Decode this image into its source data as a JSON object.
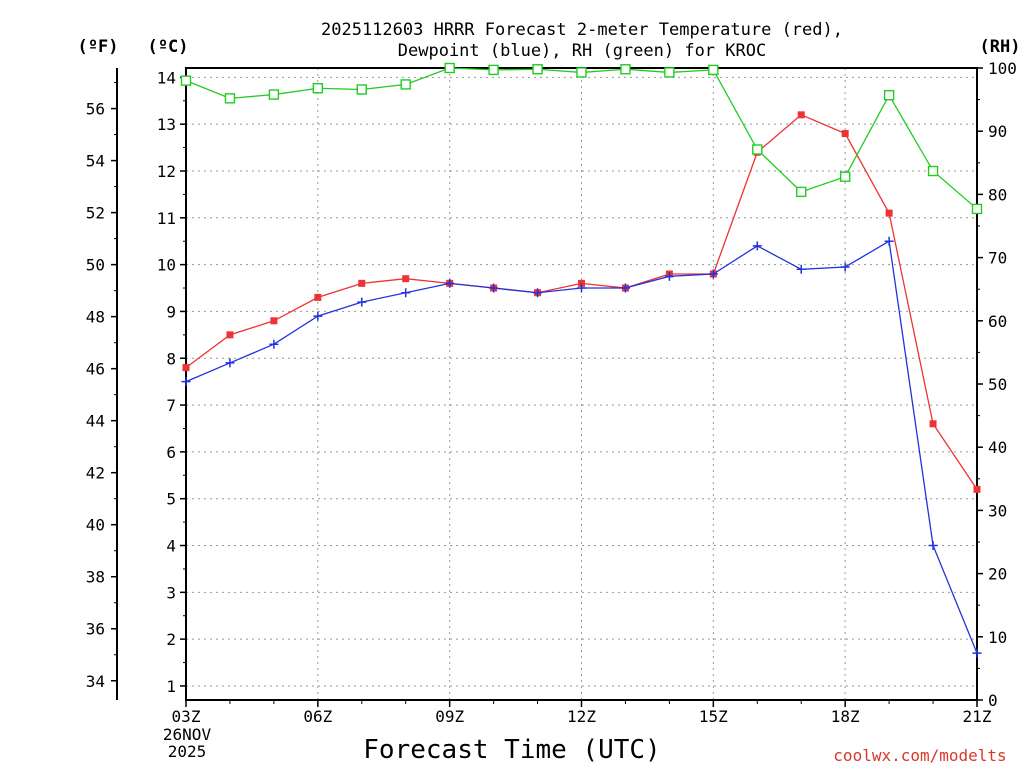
{
  "chart_data": {
    "type": "line",
    "title": [
      "2025112603 HRRR Forecast 2-meter Temperature (red),",
      "Dewpoint (blue), RH (green) for KROC"
    ],
    "xlabel": "Forecast Time (UTC)",
    "x": [
      3,
      4,
      5,
      6,
      7,
      8,
      9,
      10,
      11,
      12,
      13,
      14,
      15,
      16,
      17,
      18,
      19,
      20,
      21
    ],
    "x_ticks": [
      3,
      6,
      9,
      12,
      15,
      18,
      21
    ],
    "x_tick_labels": [
      "03Z",
      "06Z",
      "09Z",
      "12Z",
      "15Z",
      "18Z",
      "21Z"
    ],
    "date_label": [
      "26NOV",
      "2025"
    ],
    "left_axis_c": {
      "label": "(ºC)",
      "ticks": [
        1,
        2,
        3,
        4,
        5,
        6,
        7,
        8,
        9,
        10,
        11,
        12,
        13,
        14
      ],
      "range": [
        0.7,
        14.2
      ]
    },
    "left_axis_f": {
      "label": "(ºF)",
      "ticks": [
        34,
        36,
        38,
        40,
        42,
        44,
        46,
        48,
        50,
        52,
        54,
        56
      ]
    },
    "right_axis": {
      "label": "(RH)",
      "ticks": [
        0,
        10,
        20,
        30,
        40,
        50,
        60,
        70,
        80,
        90,
        100
      ],
      "range": [
        0,
        100
      ]
    },
    "series": [
      {
        "name": "Temperature",
        "axis": "c",
        "color": "#ee3333",
        "marker": "filled-square",
        "values": [
          7.8,
          8.5,
          8.8,
          9.3,
          9.6,
          9.7,
          9.6,
          9.5,
          9.4,
          9.6,
          9.5,
          9.8,
          9.8,
          12.4,
          13.2,
          12.8,
          11.1,
          6.6,
          5.2
        ]
      },
      {
        "name": "Dewpoint",
        "axis": "c",
        "color": "#2233dd",
        "marker": "plus",
        "values": [
          7.5,
          7.9,
          8.3,
          8.9,
          9.2,
          9.4,
          9.6,
          9.5,
          9.4,
          9.5,
          9.5,
          9.75,
          9.8,
          10.4,
          9.9,
          9.95,
          10.5,
          4.0,
          1.7
        ]
      },
      {
        "name": "RH",
        "axis": "rh",
        "color": "#22cc22",
        "marker": "open-square",
        "values": [
          98,
          95.2,
          95.8,
          96.8,
          96.6,
          97.4,
          100,
          99.7,
          99.8,
          99.3,
          99.8,
          99.3,
          99.7,
          87.1,
          80.4,
          82.8,
          95.7,
          83.7,
          77.7
        ]
      }
    ]
  },
  "credit": "coolwx.com/modelts"
}
